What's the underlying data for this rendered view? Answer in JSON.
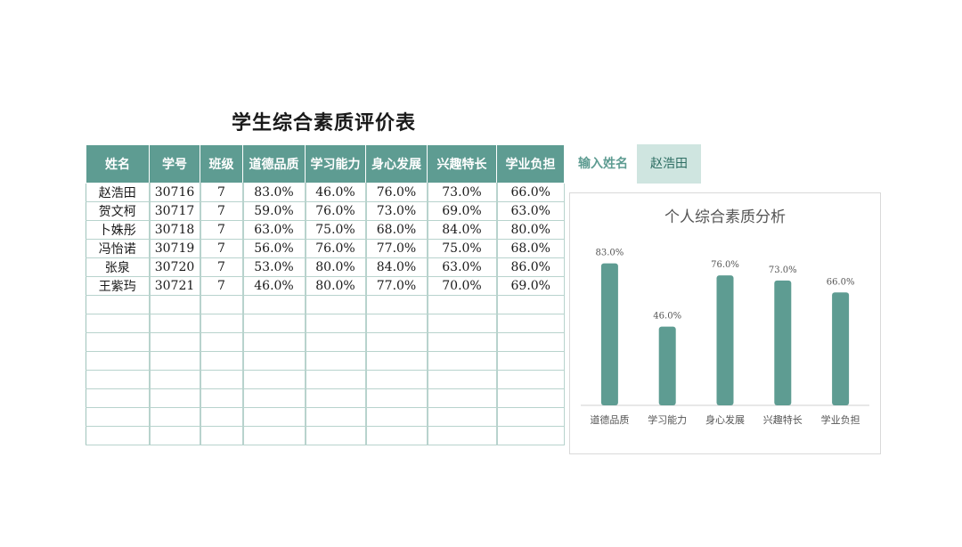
{
  "title": "学生综合素质评价表",
  "table": {
    "headers": [
      "姓名",
      "学号",
      "班级",
      "道德品质",
      "学习能力",
      "身心发展",
      "兴趣特长",
      "学业负担"
    ],
    "rows": [
      [
        "赵浩田",
        "30716",
        "7",
        "83.0%",
        "46.0%",
        "76.0%",
        "73.0%",
        "66.0%"
      ],
      [
        "贺文柯",
        "30717",
        "7",
        "59.0%",
        "76.0%",
        "73.0%",
        "69.0%",
        "63.0%"
      ],
      [
        "卜姝彤",
        "30718",
        "7",
        "63.0%",
        "75.0%",
        "68.0%",
        "84.0%",
        "80.0%"
      ],
      [
        "冯怡诺",
        "30719",
        "7",
        "56.0%",
        "76.0%",
        "77.0%",
        "75.0%",
        "68.0%"
      ],
      [
        "张泉",
        "30720",
        "7",
        "53.0%",
        "80.0%",
        "84.0%",
        "63.0%",
        "86.0%"
      ],
      [
        "王紫玙",
        "30721",
        "7",
        "46.0%",
        "80.0%",
        "77.0%",
        "70.0%",
        "69.0%"
      ]
    ],
    "empty_row_count": 8
  },
  "lookup": {
    "label": "输入姓名",
    "value": "赵浩田"
  },
  "chart_data": {
    "type": "bar",
    "title": "个人综合素质分析",
    "categories": [
      "道德品质",
      "学习能力",
      "身心发展",
      "兴趣特长",
      "学业负担"
    ],
    "values": [
      83.0,
      46.0,
      76.0,
      73.0,
      66.0
    ],
    "value_labels": [
      "83.0%",
      "46.0%",
      "76.0%",
      "73.0%",
      "66.0%"
    ],
    "ylim": [
      0,
      100
    ],
    "xlabel": "",
    "ylabel": "",
    "grid": false,
    "legend": "none",
    "bar_color": "#5e9c92"
  }
}
